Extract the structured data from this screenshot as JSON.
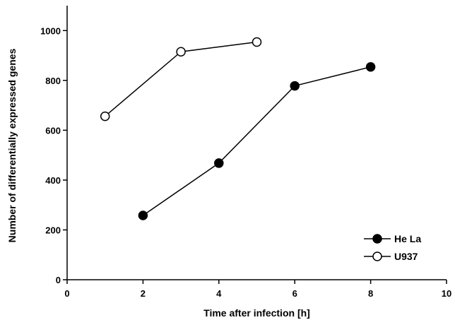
{
  "chart_data": {
    "type": "line",
    "title": "",
    "xlabel": "Time after infection [h]",
    "ylabel": "Number of differentially expressed genes",
    "xlim": [
      0,
      10
    ],
    "ylim": [
      0,
      1100
    ],
    "xticks": [
      "0",
      "2",
      "4",
      "6",
      "8",
      "10"
    ],
    "yticks": [
      "0",
      "200",
      "400",
      "600",
      "800",
      "1000"
    ],
    "grid": false,
    "legend_position": "bottom-right",
    "series": [
      {
        "name": "He La",
        "marker": "filled-circle",
        "color": "#000000",
        "x": [
          2,
          4,
          6,
          8
        ],
        "y": [
          258,
          468,
          778,
          854
        ]
      },
      {
        "name": "U937",
        "marker": "open-circle",
        "color": "#000000",
        "x": [
          1,
          3,
          5
        ],
        "y": [
          656,
          915,
          954
        ]
      }
    ]
  }
}
